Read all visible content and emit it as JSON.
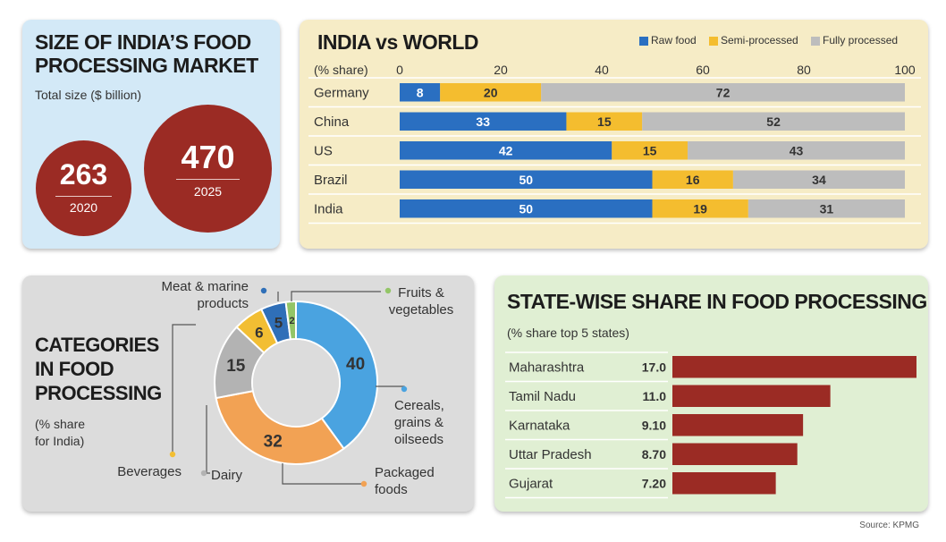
{
  "market": {
    "title_line1": "SIZE OF INDIA’S FOOD",
    "title_line2": "PROCESSING MARKET",
    "subtitle": "Total size ($ billion)",
    "items": [
      {
        "value": "263",
        "year": "2020"
      },
      {
        "value": "470",
        "year": "2025"
      }
    ]
  },
  "colors": {
    "raw": "#2a6fc1",
    "semi": "#f4bd2f",
    "fully": "#bdbdbd",
    "maroon": "#9b2b24",
    "cereals": "#4aa3e0",
    "packaged": "#f2a254",
    "dairy": "#b3b3b3",
    "beverages": "#f2be33",
    "meat": "#2f6fb8",
    "fruits": "#93c567"
  },
  "chart_data": [
    {
      "type": "bar",
      "orientation": "horizontal",
      "stacked": true,
      "title": "INDIA vs WORLD",
      "xlabel": "(% share)",
      "xlim": [
        0,
        100
      ],
      "xticks": [
        0,
        20,
        40,
        60,
        80,
        100
      ],
      "categories": [
        "Germany",
        "China",
        "US",
        "Brazil",
        "India"
      ],
      "series": [
        {
          "name": "Raw food",
          "values": [
            8,
            33,
            42,
            50,
            50
          ]
        },
        {
          "name": "Semi-processed",
          "values": [
            20,
            15,
            15,
            16,
            19
          ]
        },
        {
          "name": "Fully processed",
          "values": [
            72,
            52,
            43,
            34,
            31
          ]
        }
      ],
      "legend": "top-right"
    },
    {
      "type": "pie",
      "donut": true,
      "title_lines": [
        "CATEGORIES",
        "IN FOOD",
        "PROCESSING"
      ],
      "subtitle_lines": [
        "(% share",
        "for India)"
      ],
      "slices": [
        {
          "label_lines": [
            "Cereals,",
            "grains &",
            "oilseeds"
          ],
          "value": 40
        },
        {
          "label_lines": [
            "Packaged",
            "foods"
          ],
          "value": 32
        },
        {
          "label_lines": [
            "Dairy"
          ],
          "value": 15
        },
        {
          "label_lines": [
            "Beverages"
          ],
          "value": 6
        },
        {
          "label_lines": [
            "Meat & marine",
            "products"
          ],
          "value": 5
        },
        {
          "label_lines": [
            "Fruits &",
            "vegetables"
          ],
          "value": 2
        }
      ]
    },
    {
      "type": "bar",
      "orientation": "horizontal",
      "title": "STATE-WISE SHARE IN FOOD PROCESSING",
      "subtitle": "(% share top 5 states)",
      "categories": [
        "Maharashtra",
        "Tamil Nadu",
        "Karnataka",
        "Uttar Pradesh",
        "Gujarat"
      ],
      "values": [
        17.0,
        11.0,
        9.1,
        8.7,
        7.2
      ],
      "value_labels": [
        "17.0",
        "11.0",
        "9.10",
        "8.70",
        "7.20"
      ]
    }
  ],
  "source": "Source: KPMG"
}
